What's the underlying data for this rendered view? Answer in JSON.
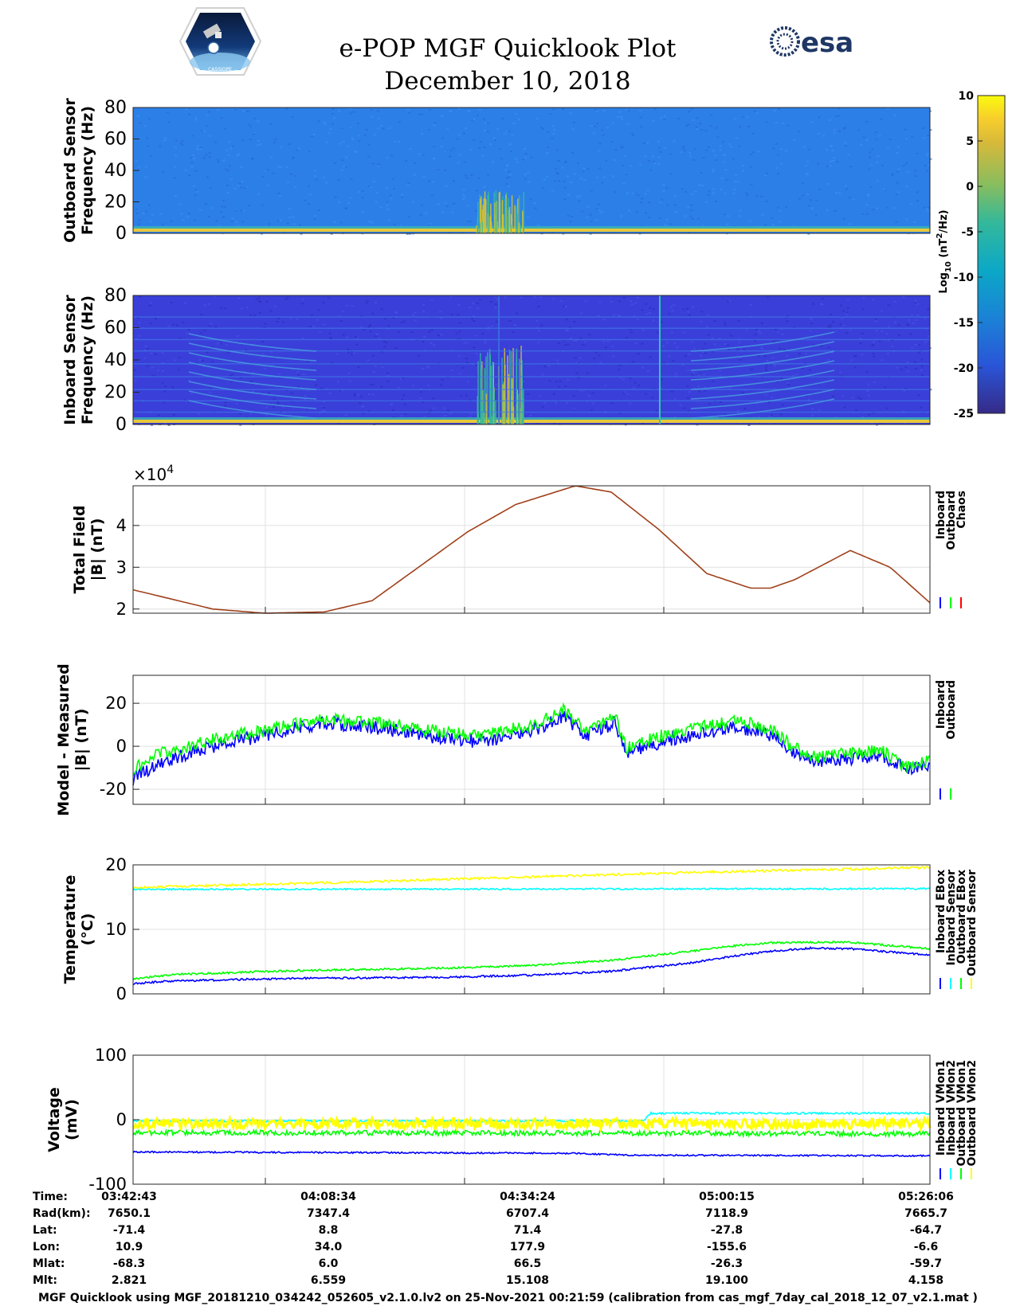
{
  "header": {
    "title": "e-POP MGF Quicklook Plot",
    "date": "December 10, 2018",
    "left_logo": {
      "name": "cassiope-logo",
      "text": "CASSIOPE"
    },
    "right_logo": {
      "name": "esa-logo",
      "text": "esa"
    }
  },
  "colorbar": {
    "label_base": "Log",
    "label_sub": "10",
    "label_unit_open": " (nT",
    "label_sup": "2",
    "label_unit_close": "/Hz)",
    "ticks": [
      "10",
      "5",
      "0",
      "-5",
      "-10",
      "-15",
      "-20",
      "-25"
    ],
    "range": [
      -25,
      10
    ]
  },
  "colors": {
    "blue": "#0000ff",
    "green": "#00ff00",
    "red": "#ff0000",
    "cyan": "#00ffff",
    "yellow": "#ffff00",
    "totalfield_line": "#a0401a",
    "spec_outboard_bg": "#2d7fe8",
    "spec_inboard_bg": "#3a3fd9",
    "grid": "#e0e0e0"
  },
  "chart_data": [
    {
      "id": "outboard-spectrogram",
      "type": "heatmap",
      "ylabel_line1": "Outboard Sensor",
      "ylabel_line2": "Frequency (Hz)",
      "ylim": [
        0,
        80
      ],
      "yticks": [
        "80",
        "60",
        "40",
        "20",
        "0"
      ]
    },
    {
      "id": "inboard-spectrogram",
      "type": "heatmap",
      "ylabel_line1": "Inboard Sensor",
      "ylabel_line2": "Frequency (Hz)",
      "ylim": [
        0,
        80
      ],
      "yticks": [
        "80",
        "60",
        "40",
        "20",
        "0"
      ]
    },
    {
      "id": "total-field",
      "type": "line",
      "ylabel_line1": "Total Field",
      "ylabel_line2": "|B| (nT)",
      "exponent_label": "×10",
      "exponent_power": "4",
      "ylim": [
        1.9,
        4.95
      ],
      "yticks": [
        "4",
        "3",
        "2"
      ],
      "legend": [
        "Inboard",
        "Outboard",
        "Chaos"
      ],
      "series": [
        {
          "name": "Chaos",
          "x": [
            0,
            0.1,
            0.165,
            0.24,
            0.3,
            0.42,
            0.48,
            0.555,
            0.6,
            0.66,
            0.72,
            0.775,
            0.8,
            0.83,
            0.9,
            0.95,
            1.0
          ],
          "y": [
            2.46,
            2.0,
            1.9,
            1.93,
            2.2,
            3.85,
            4.5,
            4.95,
            4.8,
            3.9,
            2.85,
            2.5,
            2.5,
            2.7,
            3.4,
            3.0,
            2.15
          ]
        }
      ]
    },
    {
      "id": "model-minus-measured",
      "type": "line",
      "ylabel_line1": "Model - Measured",
      "ylabel_line2": "|B| (nT)",
      "ylim": [
        -27,
        33
      ],
      "yticks": [
        "20",
        "0",
        "-20"
      ],
      "legend": [
        "Inboard",
        "Outboard"
      ],
      "series": [
        {
          "name": "Inboard",
          "x": [
            0,
            0.03,
            0.1,
            0.2,
            0.24,
            0.3,
            0.35,
            0.38,
            0.44,
            0.5,
            0.54,
            0.57,
            0.605,
            0.62,
            0.67,
            0.7,
            0.76,
            0.8,
            0.83,
            0.86,
            0.94,
            0.97,
            1.0
          ],
          "y": [
            -15,
            -8,
            0,
            8,
            11,
            9,
            6,
            4,
            2,
            7,
            14,
            5,
            11,
            -3,
            3,
            5,
            9,
            5,
            -3,
            -7,
            -4,
            -11,
            -8
          ]
        },
        {
          "name": "Outboard",
          "x": [
            0,
            0.03,
            0.1,
            0.2,
            0.24,
            0.3,
            0.35,
            0.38,
            0.44,
            0.5,
            0.54,
            0.57,
            0.605,
            0.62,
            0.67,
            0.7,
            0.76,
            0.8,
            0.83,
            0.86,
            0.94,
            0.97,
            1.0
          ],
          "y": [
            -11,
            -4,
            3,
            10,
            13,
            11,
            9,
            7,
            5,
            10,
            17,
            6,
            14,
            -1,
            6,
            8,
            12,
            8,
            -1,
            -5,
            -2,
            -10,
            -6
          ]
        }
      ]
    },
    {
      "id": "temperature",
      "type": "line",
      "ylabel_line1": "Temperature",
      "ylabel_line2": "(°C)",
      "ylim": [
        0,
        20
      ],
      "yticks": [
        "20",
        "10",
        "0"
      ],
      "legend": [
        "Inboard EBox",
        "Inboard Sensor",
        "Outboard EBox",
        "Outboard Sensor"
      ],
      "series": [
        {
          "name": "Inboard EBox",
          "x": [
            0,
            0.05,
            0.2,
            0.4,
            0.5,
            0.6,
            0.7,
            0.75,
            0.8,
            0.85,
            0.9,
            1.0
          ],
          "y": [
            1.6,
            2.0,
            2.4,
            2.6,
            2.9,
            3.5,
            4.8,
            5.8,
            6.6,
            7.1,
            7.0,
            6.0
          ]
        },
        {
          "name": "Inboard Sensor",
          "x": [
            0,
            1.0
          ],
          "y": [
            16.2,
            16.3
          ]
        },
        {
          "name": "Outboard EBox",
          "x": [
            0,
            0.05,
            0.2,
            0.4,
            0.5,
            0.6,
            0.7,
            0.75,
            0.8,
            0.85,
            0.9,
            1.0
          ],
          "y": [
            2.3,
            3.0,
            3.6,
            4.0,
            4.4,
            5.2,
            6.6,
            7.4,
            7.9,
            8.0,
            8.0,
            7.0
          ]
        },
        {
          "name": "Outboard Sensor",
          "x": [
            0,
            0.3,
            0.6,
            0.8,
            1.0
          ],
          "y": [
            16.5,
            17.4,
            18.5,
            19.1,
            19.6
          ]
        }
      ]
    },
    {
      "id": "voltage",
      "type": "line",
      "ylabel_line1": "Voltage",
      "ylabel_line2": "(mV)",
      "ylim": [
        -100,
        100
      ],
      "yticks": [
        "100",
        "0",
        "-100"
      ],
      "legend": [
        "Inboard VMon1",
        "Inboard VMon2",
        "Outboard VMon1",
        "Outboard VMon2"
      ],
      "series": [
        {
          "name": "Inboard VMon1",
          "x": [
            0,
            0.55,
            0.62,
            1.0
          ],
          "y": [
            -50,
            -52,
            -55,
            -56
          ]
        },
        {
          "name": "Inboard VMon2",
          "x": [
            0,
            0.64,
            0.65,
            1.0
          ],
          "y": [
            -2,
            -2,
            10,
            10
          ]
        },
        {
          "name": "Outboard VMon1",
          "x": [
            0,
            0.64,
            1.0
          ],
          "y": [
            -20,
            -21,
            -22
          ]
        },
        {
          "name": "Outboard VMon2",
          "x": [
            0,
            1.0
          ],
          "y": [
            -6,
            -6
          ]
        }
      ]
    }
  ],
  "orbit_table": {
    "row_labels": [
      "Time:",
      "Rad(km):",
      "Lat:",
      "Lon:",
      "Mlat:",
      "Mlt:"
    ],
    "columns": [
      [
        "03:42:43",
        "7650.1",
        "-71.4",
        "10.9",
        "-68.3",
        "2.821"
      ],
      [
        "04:08:34",
        "7347.4",
        "8.8",
        "34.0",
        "6.0",
        "6.559"
      ],
      [
        "04:34:24",
        "6707.4",
        "71.4",
        "177.9",
        "66.5",
        "15.108"
      ],
      [
        "05:00:15",
        "7118.9",
        "-27.8",
        "-155.6",
        "-26.3",
        "19.100"
      ],
      [
        "05:26:06",
        "7665.7",
        "-64.7",
        "-6.6",
        "-59.7",
        "4.158"
      ]
    ]
  },
  "footer": "MGF Quicklook using MGF_20181210_034242_052605_v2.1.0.lv2 on 25-Nov-2021 00:21:59 (calibration from cas_mgf_7day_cal_2018_12_07_v2.1.mat )"
}
